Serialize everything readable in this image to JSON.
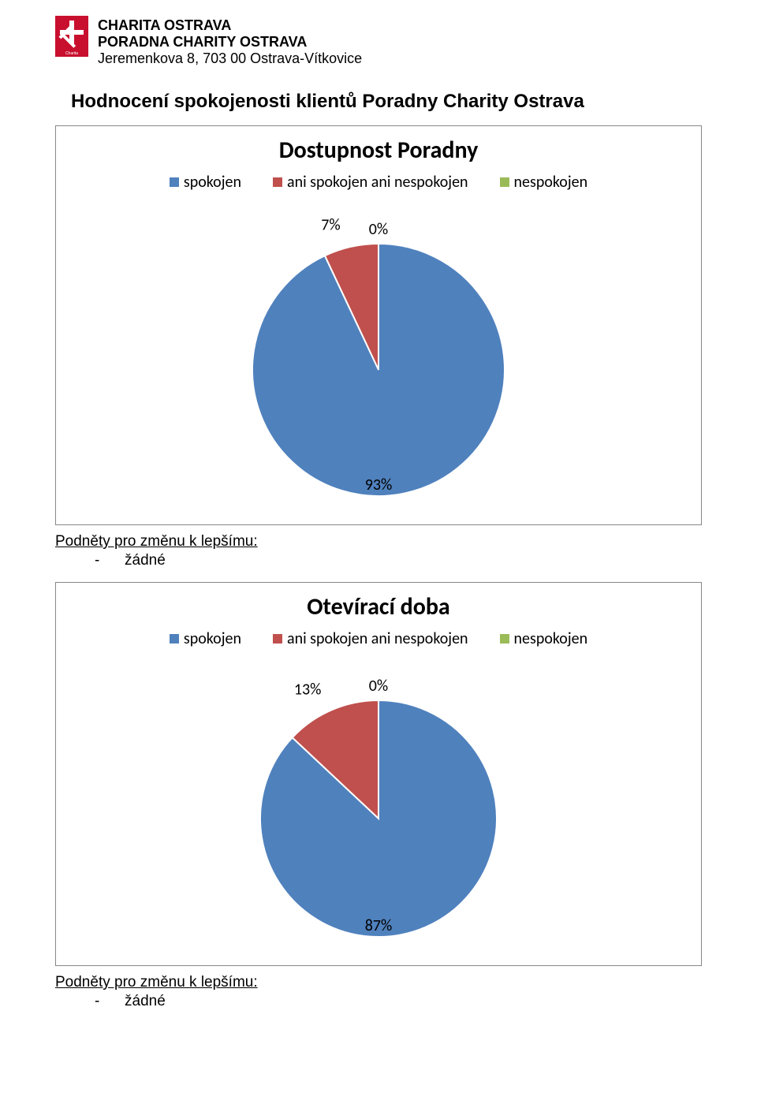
{
  "header": {
    "line1": "CHARITA OSTRAVA",
    "line2": "PORADNA CHARITY OSTRAVA",
    "address": "Jeremenkova 8, 703 00 Ostrava-Vítkovice"
  },
  "page_title": "Hodnocení spokojenosti klientů Poradny Charity Ostrava",
  "legend_labels": {
    "a": "spokojen",
    "b": "ani spokojen ani nespokojen",
    "c": "nespokojen"
  },
  "colors": {
    "series_a": "#4f81bd",
    "series_b": "#c0504d",
    "series_c": "#9bbb59",
    "chart_border": "#888888",
    "background": "#ffffff",
    "text": "#000000",
    "slice_stroke": "#ffffff",
    "logo_bg": "#c8102e",
    "logo_fg": "#ffffff"
  },
  "chart1": {
    "type": "pie",
    "title": "Dostupnost Poradny",
    "title_fontsize": 30,
    "label_fontsize": 20,
    "values": {
      "spokojen": 93,
      "ani": 7,
      "nespokojen": 0
    },
    "slice_colors": {
      "spokojen": "#4f81bd",
      "ani": "#c0504d",
      "nespokojen": "#9bbb59"
    },
    "data_labels": {
      "zero": "0%",
      "ani": "7%",
      "spokojen": "93%"
    },
    "radius": 160
  },
  "chart2": {
    "type": "pie",
    "title": "Otevírací doba",
    "title_fontsize": 30,
    "label_fontsize": 20,
    "values": {
      "spokojen": 87,
      "ani": 13,
      "nespokojen": 0
    },
    "slice_colors": {
      "spokojen": "#4f81bd",
      "ani": "#c0504d",
      "nespokojen": "#9bbb59"
    },
    "data_labels": {
      "zero": "0%",
      "ani": "13%",
      "spokojen": "87%"
    },
    "radius": 150
  },
  "notes": {
    "heading": "Podněty pro změnu k lepšímu:",
    "bullet_marker": "-",
    "bullet_text": "žádné"
  }
}
